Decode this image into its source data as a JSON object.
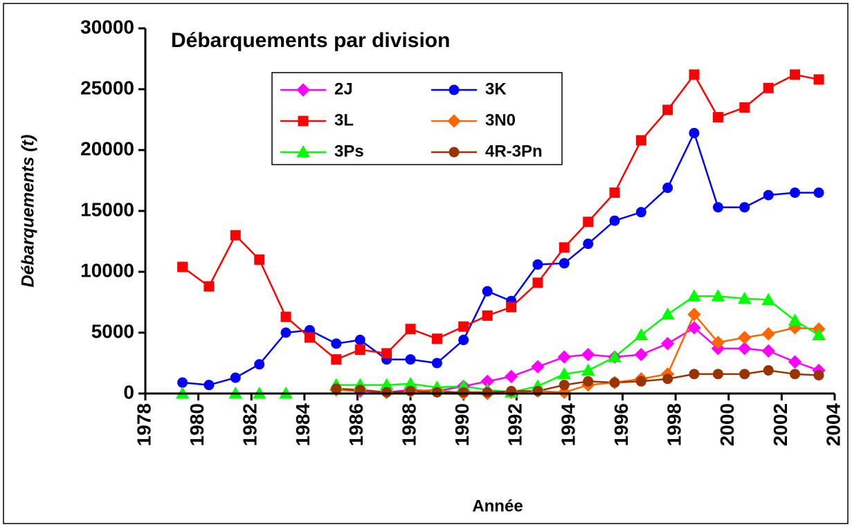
{
  "chart_data": {
    "type": "line",
    "title": "Débarquements par division",
    "x_label": "Année",
    "y_label": "Débarquements (t)",
    "x": [
      1979.4,
      1980.4,
      1981.4,
      1982.3,
      1983.3,
      1984.2,
      1985.2,
      1986.1,
      1987.1,
      1988.0,
      1989.0,
      1990.0,
      1990.9,
      1991.8,
      1992.8,
      1993.8,
      1994.7,
      1995.7,
      1996.7,
      1997.7,
      1998.7,
      1999.6,
      2000.6,
      2001.5,
      2002.5,
      2003.4
    ],
    "series": [
      {
        "name": "2J",
        "color": "#ff00ff",
        "marker": "diamond",
        "values": [
          null,
          null,
          null,
          null,
          null,
          null,
          300,
          200,
          100,
          300,
          200,
          600,
          1000,
          1400,
          2200,
          3000,
          3200,
          3000,
          3200,
          4100,
          5400,
          3700,
          3700,
          3500,
          2600,
          1900
        ]
      },
      {
        "name": "3K",
        "color": "#0000ff",
        "marker": "circle",
        "values": [
          900,
          700,
          1300,
          2400,
          5000,
          5200,
          4100,
          4400,
          2800,
          2800,
          2500,
          4400,
          8400,
          7600,
          10600,
          10700,
          12300,
          14200,
          14900,
          16900,
          21400,
          15300,
          15300,
          16300,
          16500,
          16500
        ]
      },
      {
        "name": "3L",
        "color": "#ff0000",
        "marker": "square",
        "values": [
          10400,
          8800,
          13000,
          11000,
          6300,
          4600,
          2800,
          3600,
          3300,
          5300,
          4500,
          5500,
          6400,
          7100,
          9100,
          12000,
          14100,
          16500,
          20800,
          23300,
          26200,
          22700,
          23500,
          25100,
          26200,
          25800
        ]
      },
      {
        "name": "3N0",
        "color": "#ff6600",
        "marker": "diamond",
        "values": [
          null,
          null,
          null,
          null,
          null,
          null,
          300,
          300,
          100,
          200,
          300,
          0,
          0,
          100,
          200,
          100,
          700,
          900,
          1200,
          1600,
          6500,
          4200,
          4600,
          4900,
          5400,
          5300
        ]
      },
      {
        "name": "3Ps",
        "color": "#00ff00",
        "marker": "triangle",
        "values": [
          0,
          null,
          0,
          0,
          0,
          null,
          700,
          700,
          700,
          800,
          500,
          600,
          300,
          100,
          600,
          1600,
          1900,
          3000,
          4800,
          6500,
          8000,
          8000,
          7800,
          7700,
          6000,
          4800
        ]
      },
      {
        "name": "4R-3Pn",
        "color": "#993300",
        "marker": "circle",
        "values": [
          null,
          null,
          null,
          null,
          null,
          null,
          400,
          300,
          100,
          200,
          100,
          100,
          100,
          200,
          200,
          700,
          1000,
          900,
          1000,
          1200,
          1600,
          1600,
          1600,
          1900,
          1600,
          1500
        ]
      }
    ],
    "xlim": [
      1978,
      2004
    ],
    "xticks": [
      1978,
      1980,
      1982,
      1984,
      1986,
      1988,
      1990,
      1992,
      1994,
      1996,
      1998,
      2000,
      2002,
      2004
    ],
    "ylim": [
      0,
      30000
    ],
    "yticks": [
      0,
      5000,
      10000,
      15000,
      20000,
      25000,
      30000
    ],
    "grid": false,
    "legend": "top"
  }
}
